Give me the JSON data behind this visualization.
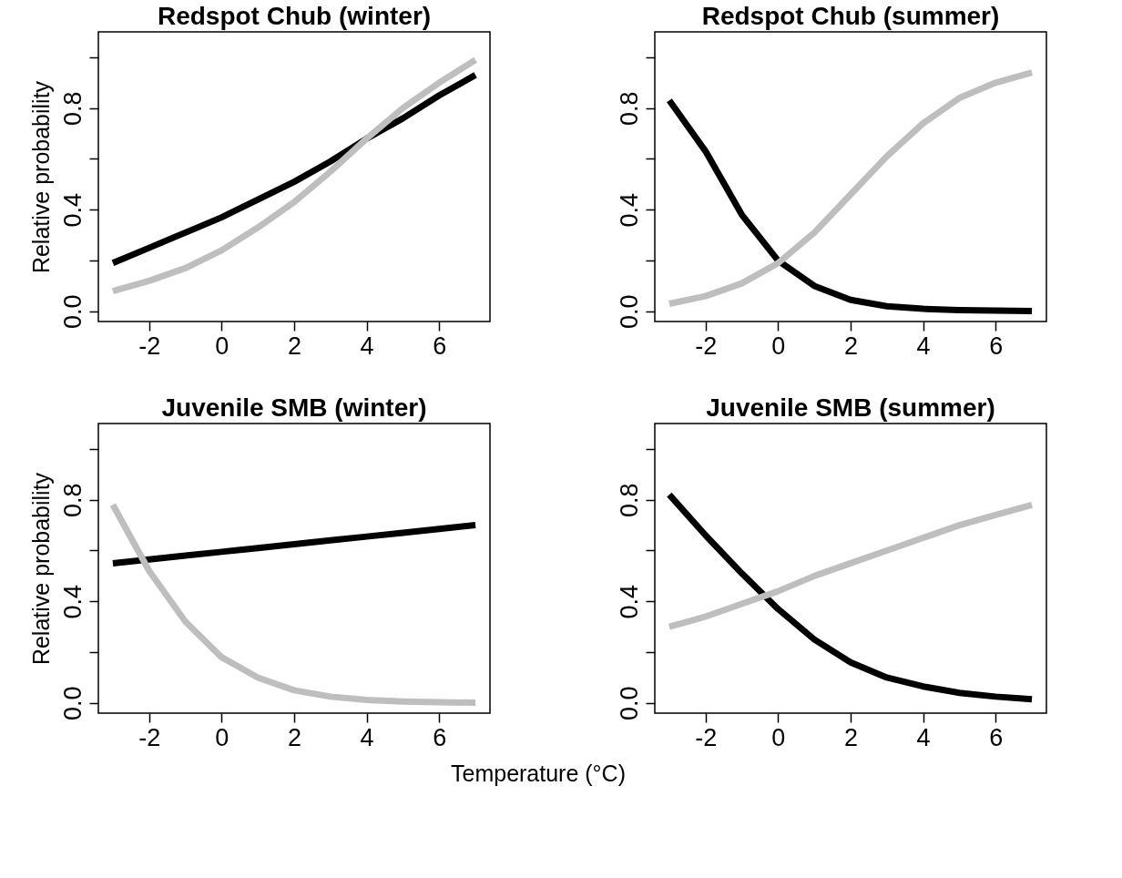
{
  "chart_data": [
    {
      "type": "line",
      "title": "Redspot Chub (winter)",
      "ylabel": "Relative probability",
      "x": [
        -3,
        -2,
        -1,
        0,
        1,
        2,
        3,
        4,
        5,
        6,
        7
      ],
      "xlim": [
        -3.4,
        7.4
      ],
      "xticks": [
        -2,
        0,
        2,
        4,
        6
      ],
      "ylim": [
        -0.04,
        1.1
      ],
      "yticks": [
        {
          "value": 0,
          "label": "0.0"
        },
        {
          "value": 0.2,
          "label": null
        },
        {
          "value": 0.4,
          "label": "0.4"
        },
        {
          "value": 0.6,
          "label": null
        },
        {
          "value": 0.8,
          "label": "0.8"
        },
        {
          "value": 1.0,
          "label": null
        }
      ],
      "grid": false,
      "series": [
        {
          "color": "#000000",
          "values": [
            0.19,
            0.25,
            0.31,
            0.37,
            0.44,
            0.51,
            0.59,
            0.68,
            0.76,
            0.85,
            0.93
          ]
        },
        {
          "color": "#bebebe",
          "values": [
            0.08,
            0.12,
            0.17,
            0.24,
            0.33,
            0.43,
            0.55,
            0.68,
            0.8,
            0.9,
            0.99
          ]
        }
      ]
    },
    {
      "type": "line",
      "title": "Redspot Chub (summer)",
      "x": [
        -3,
        -2,
        -1,
        0,
        1,
        2,
        3,
        4,
        5,
        6,
        7
      ],
      "xlim": [
        -3.4,
        7.4
      ],
      "xticks": [
        -2,
        0,
        2,
        4,
        6
      ],
      "ylim": [
        -0.04,
        1.1
      ],
      "yticks": [
        {
          "value": 0,
          "label": "0.0"
        },
        {
          "value": 0.2,
          "label": null
        },
        {
          "value": 0.4,
          "label": "0.4"
        },
        {
          "value": 0.6,
          "label": null
        },
        {
          "value": 0.8,
          "label": "0.8"
        },
        {
          "value": 1.0,
          "label": null
        }
      ],
      "grid": false,
      "series": [
        {
          "color": "#000000",
          "values": [
            0.83,
            0.63,
            0.38,
            0.2,
            0.1,
            0.045,
            0.02,
            0.01,
            0.005,
            0.003,
            0.001
          ]
        },
        {
          "color": "#bebebe",
          "values": [
            0.03,
            0.06,
            0.11,
            0.19,
            0.31,
            0.46,
            0.61,
            0.74,
            0.84,
            0.9,
            0.94
          ]
        }
      ]
    },
    {
      "type": "line",
      "title": "Juvenile SMB (winter)",
      "ylabel": "Relative probability",
      "xlabel": "Temperature (°C)",
      "x": [
        -3,
        -2,
        -1,
        0,
        1,
        2,
        3,
        4,
        5,
        6,
        7
      ],
      "xlim": [
        -3.4,
        7.4
      ],
      "xticks": [
        -2,
        0,
        2,
        4,
        6
      ],
      "ylim": [
        -0.04,
        1.1
      ],
      "yticks": [
        {
          "value": 0,
          "label": "0.0"
        },
        {
          "value": 0.2,
          "label": null
        },
        {
          "value": 0.4,
          "label": "0.4"
        },
        {
          "value": 0.6,
          "label": null
        },
        {
          "value": 0.8,
          "label": "0.8"
        },
        {
          "value": 1.0,
          "label": null
        }
      ],
      "grid": false,
      "series": [
        {
          "color": "#000000",
          "values": [
            0.55,
            0.565,
            0.58,
            0.595,
            0.61,
            0.625,
            0.64,
            0.655,
            0.67,
            0.685,
            0.7
          ]
        },
        {
          "color": "#bebebe",
          "values": [
            0.78,
            0.52,
            0.32,
            0.18,
            0.1,
            0.05,
            0.025,
            0.012,
            0.006,
            0.003,
            0.001
          ]
        }
      ]
    },
    {
      "type": "line",
      "title": "Juvenile SMB (summer)",
      "x": [
        -3,
        -2,
        -1,
        0,
        1,
        2,
        3,
        4,
        5,
        6,
        7
      ],
      "xlim": [
        -3.4,
        7.4
      ],
      "xticks": [
        -2,
        0,
        2,
        4,
        6
      ],
      "ylim": [
        -0.04,
        1.1
      ],
      "yticks": [
        {
          "value": 0,
          "label": "0.0"
        },
        {
          "value": 0.2,
          "label": null
        },
        {
          "value": 0.4,
          "label": "0.4"
        },
        {
          "value": 0.6,
          "label": null
        },
        {
          "value": 0.8,
          "label": "0.8"
        },
        {
          "value": 1.0,
          "label": null
        }
      ],
      "grid": false,
      "series": [
        {
          "color": "#000000",
          "values": [
            0.82,
            0.66,
            0.51,
            0.37,
            0.25,
            0.16,
            0.1,
            0.065,
            0.04,
            0.025,
            0.015
          ]
        },
        {
          "color": "#bebebe",
          "values": [
            0.3,
            0.34,
            0.39,
            0.44,
            0.5,
            0.55,
            0.6,
            0.65,
            0.7,
            0.74,
            0.78
          ]
        }
      ]
    }
  ]
}
